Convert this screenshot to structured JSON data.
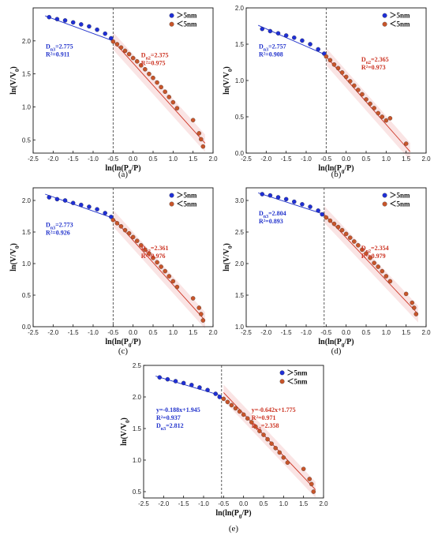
{
  "legend": {
    "above_label": "＞5nm",
    "below_label": "＜5nm"
  },
  "colors": {
    "above": "#1f2fd6",
    "below": "#c8552a",
    "fit_above": "#2233cc",
    "fit_below": "#cc3322",
    "band": "#f4c4c4"
  },
  "chart_data": [
    {
      "type": "scatter",
      "caption": "(a)",
      "xlabel": "ln(ln(P0/P)",
      "ylabel": "ln(V/V0)",
      "xlim": [
        -2.5,
        2.0
      ],
      "ylim": [
        0.3,
        2.5
      ],
      "xticks": [
        "-2.5",
        "-2.0",
        "-1.5",
        "-1.0",
        "-0.5",
        "0.0",
        "0.5",
        "1.0",
        "1.5",
        "2.0"
      ],
      "yticks": [
        "0.5",
        "1.0",
        "1.5",
        "2.0"
      ],
      "divider_x": -0.5,
      "series": [
        {
          "name": "＞5nm",
          "x": [
            -2.1,
            -1.9,
            -1.7,
            -1.5,
            -1.3,
            -1.1,
            -0.9,
            -0.7,
            -0.55
          ],
          "y": [
            2.36,
            2.33,
            2.31,
            2.28,
            2.25,
            2.22,
            2.17,
            2.11,
            2.04
          ]
        },
        {
          "name": "＜5nm",
          "x": [
            -0.5,
            -0.4,
            -0.3,
            -0.2,
            -0.1,
            0.0,
            0.1,
            0.2,
            0.3,
            0.4,
            0.5,
            0.6,
            0.7,
            0.8,
            0.9,
            1.0,
            1.1,
            1.5,
            1.65,
            1.7,
            1.75
          ],
          "y": [
            1.99,
            1.95,
            1.9,
            1.85,
            1.8,
            1.74,
            1.69,
            1.63,
            1.57,
            1.5,
            1.44,
            1.37,
            1.3,
            1.23,
            1.15,
            1.07,
            0.98,
            0.8,
            0.6,
            0.51,
            0.4
          ]
        }
      ],
      "fit_lines": [
        {
          "x1": -2.2,
          "y1": 2.38,
          "x2": -0.5,
          "y2": 2.0
        },
        {
          "x1": -0.5,
          "y1": 2.0,
          "x2": 1.8,
          "y2": 0.45
        }
      ],
      "ann_left": [
        "Dn3=2.775",
        "R²=0.911"
      ],
      "ann_right": [
        "Dn2=2.375",
        "R²=0.975"
      ]
    },
    {
      "type": "scatter",
      "caption": "(b)",
      "xlabel": "ln(ln(P0/P)",
      "ylabel": "ln(V/V0)",
      "xlim": [
        -2.5,
        2.0
      ],
      "ylim": [
        0.0,
        2.0
      ],
      "xticks": [
        "-2.5",
        "-2.0",
        "-1.5",
        "-1.0",
        "-0.5",
        "0.0",
        "0.5",
        "1.0",
        "1.5",
        "2.0"
      ],
      "yticks": [
        "0.0",
        "0.5",
        "1.0",
        "1.5",
        "2.0"
      ],
      "divider_x": -0.5,
      "series": [
        {
          "name": "＞5nm",
          "x": [
            -2.1,
            -1.9,
            -1.7,
            -1.5,
            -1.3,
            -1.1,
            -0.9,
            -0.7,
            -0.55
          ],
          "y": [
            1.71,
            1.68,
            1.65,
            1.62,
            1.59,
            1.55,
            1.5,
            1.43,
            1.37
          ]
        },
        {
          "name": "＜5nm",
          "x": [
            -0.5,
            -0.4,
            -0.3,
            -0.2,
            -0.1,
            0.0,
            0.1,
            0.2,
            0.3,
            0.4,
            0.5,
            0.6,
            0.7,
            0.8,
            0.9,
            1.0,
            1.1,
            1.5
          ],
          "y": [
            1.33,
            1.28,
            1.22,
            1.17,
            1.11,
            1.05,
            0.99,
            0.93,
            0.87,
            0.81,
            0.74,
            0.68,
            0.62,
            0.55,
            0.5,
            0.45,
            0.48,
            0.13
          ]
        }
      ],
      "fit_lines": [
        {
          "x1": -2.2,
          "y1": 1.76,
          "x2": -0.5,
          "y2": 1.35
        },
        {
          "x1": -0.5,
          "y1": 1.33,
          "x2": 1.6,
          "y2": 0.02
        }
      ],
      "ann_left": [
        "Dn3=2.757",
        "R²=0.908"
      ],
      "ann_right": [
        "Dn2=2.365",
        "R²=0.973"
      ]
    },
    {
      "type": "scatter",
      "caption": "(c)",
      "xlabel": "ln(ln(P0/P)",
      "ylabel": "ln(V/V0)",
      "xlim": [
        -2.5,
        2.0
      ],
      "ylim": [
        0.0,
        2.2
      ],
      "xticks": [
        "-2.5",
        "-2.0",
        "-1.5",
        "-1.0",
        "-0.5",
        "0.0",
        "0.5",
        "1.0",
        "1.5",
        "2.0"
      ],
      "yticks": [
        "0.0",
        "0.5",
        "1.0",
        "1.5",
        "2.0"
      ],
      "divider_x": -0.5,
      "series": [
        {
          "name": "＞5nm",
          "x": [
            -2.1,
            -1.9,
            -1.7,
            -1.5,
            -1.3,
            -1.1,
            -0.9,
            -0.7,
            -0.55
          ],
          "y": [
            2.05,
            2.02,
            2.0,
            1.96,
            1.93,
            1.9,
            1.86,
            1.8,
            1.74
          ]
        },
        {
          "name": "＜5nm",
          "x": [
            -0.5,
            -0.4,
            -0.3,
            -0.2,
            -0.1,
            0.0,
            0.1,
            0.2,
            0.3,
            0.4,
            0.5,
            0.6,
            0.7,
            0.8,
            0.9,
            1.0,
            1.1,
            1.5,
            1.65,
            1.7,
            1.75
          ],
          "y": [
            1.69,
            1.64,
            1.59,
            1.53,
            1.48,
            1.42,
            1.36,
            1.29,
            1.22,
            1.16,
            1.09,
            1.02,
            0.95,
            0.88,
            0.8,
            0.72,
            0.63,
            0.45,
            0.3,
            0.2,
            0.1
          ]
        }
      ],
      "fit_lines": [
        {
          "x1": -2.2,
          "y1": 2.1,
          "x2": -0.5,
          "y2": 1.72
        },
        {
          "x1": -0.5,
          "y1": 1.72,
          "x2": 1.8,
          "y2": 0.1
        }
      ],
      "ann_left": [
        "Dn3=2.773",
        "R²=0.926"
      ],
      "ann_right": [
        "Dn2=2.361",
        "R²=0.976"
      ]
    },
    {
      "type": "scatter",
      "caption": "(d)",
      "xlabel": "ln(ln(P0/P)",
      "ylabel": "ln(V/V0)",
      "xlim": [
        -2.5,
        2.0
      ],
      "ylim": [
        1.0,
        3.2
      ],
      "xticks": [
        "-2.5",
        "-2.0",
        "-1.5",
        "-1.0",
        "-0.5",
        "0.0",
        "0.5",
        "1.0",
        "1.5",
        "2.0"
      ],
      "yticks": [
        "1.0",
        "1.5",
        "2.0",
        "2.5",
        "3.0"
      ],
      "divider_x": -0.55,
      "series": [
        {
          "name": "＞5nm",
          "x": [
            -2.1,
            -1.9,
            -1.7,
            -1.5,
            -1.3,
            -1.1,
            -0.9,
            -0.7,
            -0.6
          ],
          "y": [
            3.1,
            3.08,
            3.05,
            3.02,
            2.98,
            2.94,
            2.9,
            2.84,
            2.78
          ]
        },
        {
          "name": "＜5nm",
          "x": [
            -0.5,
            -0.4,
            -0.3,
            -0.2,
            -0.1,
            0.0,
            0.1,
            0.2,
            0.3,
            0.4,
            0.5,
            0.6,
            0.7,
            0.8,
            0.9,
            1.0,
            1.1,
            1.5,
            1.65,
            1.7,
            1.75
          ],
          "y": [
            2.73,
            2.68,
            2.63,
            2.58,
            2.53,
            2.47,
            2.41,
            2.35,
            2.29,
            2.22,
            2.16,
            2.09,
            2.01,
            1.95,
            1.88,
            1.8,
            1.72,
            1.52,
            1.38,
            1.3,
            1.2
          ]
        }
      ],
      "fit_lines": [
        {
          "x1": -2.2,
          "y1": 3.12,
          "x2": -0.55,
          "y2": 2.78
        },
        {
          "x1": -0.55,
          "y1": 2.78,
          "x2": 1.8,
          "y2": 1.2
        }
      ],
      "ann_left": [
        "Dn3=2.804",
        "R²=0.893"
      ],
      "ann_right": [
        "Dn2=2.354",
        "R²=0.979"
      ]
    },
    {
      "type": "scatter",
      "caption": "(e)",
      "xlabel": "ln(ln(P0/P)",
      "ylabel": "ln(V/V0)",
      "xlim": [
        -2.5,
        2.0
      ],
      "ylim": [
        0.4,
        2.5
      ],
      "xticks": [
        "-2.5",
        "-2.0",
        "-1.5",
        "-1.0",
        "-0.5",
        "0.0",
        "0.5",
        "1.0",
        "1.5",
        "2.0"
      ],
      "yticks": [
        "0.5",
        "1.0",
        "1.5",
        "2.0",
        "2.5"
      ],
      "divider_x": -0.55,
      "series": [
        {
          "name": "＞5nm",
          "x": [
            -2.1,
            -1.9,
            -1.7,
            -1.5,
            -1.3,
            -1.1,
            -0.9,
            -0.7,
            -0.6
          ],
          "y": [
            2.31,
            2.28,
            2.25,
            2.22,
            2.19,
            2.15,
            2.11,
            2.05,
            2.0
          ]
        },
        {
          "name": "＜5nm",
          "x": [
            -0.5,
            -0.4,
            -0.3,
            -0.2,
            -0.1,
            0.0,
            0.1,
            0.2,
            0.3,
            0.4,
            0.5,
            0.6,
            0.7,
            0.8,
            0.9,
            1.0,
            1.1,
            1.5,
            1.65,
            1.7,
            1.75
          ],
          "y": [
            1.97,
            1.92,
            1.87,
            1.82,
            1.77,
            1.72,
            1.66,
            1.6,
            1.53,
            1.46,
            1.4,
            1.33,
            1.26,
            1.19,
            1.12,
            1.04,
            0.96,
            0.86,
            0.7,
            0.62,
            0.5
          ]
        }
      ],
      "fit_lines": [
        {
          "x1": -2.2,
          "y1": 2.33,
          "x2": -0.55,
          "y2": 2.02
        },
        {
          "x1": -0.5,
          "y1": 2.07,
          "x2": 1.8,
          "y2": 0.53
        }
      ],
      "ann_left": [
        "y=-0.188x+1.945",
        "R²=0.937",
        "Dn3=2.812"
      ],
      "ann_right": [
        "y=-0.642x+1.775",
        "R²=0.971",
        "Dn2=2.358"
      ]
    }
  ]
}
